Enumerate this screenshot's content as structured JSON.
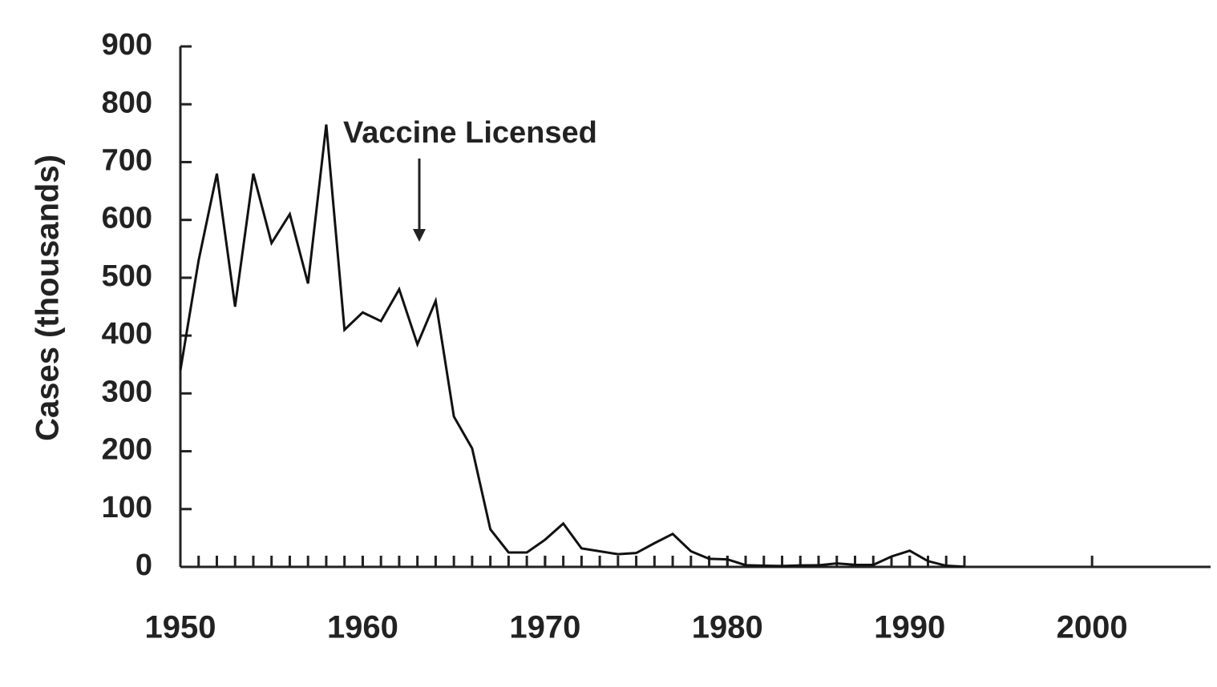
{
  "chart_data": {
    "type": "line",
    "y_label": "Cases (thousands)",
    "annotation": {
      "text": "Vaccine Licensed",
      "x": 1963
    },
    "x": [
      1950,
      1951,
      1952,
      1953,
      1954,
      1955,
      1956,
      1957,
      1958,
      1959,
      1960,
      1961,
      1962,
      1963,
      1964,
      1965,
      1966,
      1967,
      1968,
      1969,
      1970,
      1971,
      1972,
      1973,
      1974,
      1975,
      1976,
      1977,
      1978,
      1979,
      1980,
      1981,
      1982,
      1983,
      1984,
      1985,
      1986,
      1987,
      1988,
      1989,
      1990,
      1991,
      1992,
      1993
    ],
    "series": [
      {
        "color": "#111111",
        "values": [
          340,
          530,
          680,
          450,
          680,
          560,
          610,
          490,
          765,
          410,
          440,
          425,
          480,
          385,
          460,
          260,
          205,
          65,
          25,
          25,
          47,
          75,
          32,
          27,
          22,
          24,
          41,
          57,
          27,
          14,
          13,
          3,
          2,
          1.5,
          2.6,
          2.8,
          6,
          3.6,
          3.4,
          18,
          28,
          10,
          2,
          0.3
        ]
      }
    ],
    "xlim": [
      1950,
      2006.5
    ],
    "xticks": [
      1950,
      1960,
      1970,
      1980,
      1990,
      2000
    ],
    "ylim": [
      0,
      900
    ],
    "yticks": [
      0,
      100,
      200,
      300,
      400,
      500,
      600,
      700,
      800,
      900
    ]
  }
}
